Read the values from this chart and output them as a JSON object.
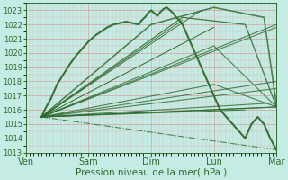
{
  "xlabel": "Pression niveau de la mer( hPa )",
  "ylim": [
    1013,
    1023.5
  ],
  "xlim": [
    0,
    4.0
  ],
  "yticks": [
    1013,
    1014,
    1015,
    1016,
    1017,
    1018,
    1019,
    1020,
    1021,
    1022,
    1023
  ],
  "xtick_labels": [
    "Ven",
    "Sam",
    "Dim",
    "Lun",
    "Mar"
  ],
  "xtick_positions": [
    0,
    1,
    2,
    3,
    4
  ],
  "bg_color": "#c5ece4",
  "grid_color_major": "#d4a0a0",
  "grid_color_minor": "#dbbaba",
  "line_color": "#2d6b2d",
  "fig_bg": "#c5ece4",
  "lines": [
    {
      "x": [
        0.25,
        4.0
      ],
      "y": [
        1015.5,
        1016.2
      ],
      "lw": 0.8,
      "style": "-"
    },
    {
      "x": [
        0.25,
        4.0
      ],
      "y": [
        1015.5,
        1016.5
      ],
      "lw": 0.8,
      "style": "-"
    },
    {
      "x": [
        0.25,
        4.0
      ],
      "y": [
        1015.5,
        1017.5
      ],
      "lw": 0.8,
      "style": "-"
    },
    {
      "x": [
        0.25,
        4.0
      ],
      "y": [
        1015.5,
        1018.0
      ],
      "lw": 0.8,
      "style": "-"
    },
    {
      "x": [
        0.25,
        4.0
      ],
      "y": [
        1015.5,
        1021.8
      ],
      "lw": 0.8,
      "style": "-"
    },
    {
      "x": [
        0.25,
        4.0
      ],
      "y": [
        1015.5,
        1022.0
      ],
      "lw": 0.8,
      "style": "-"
    },
    {
      "x": [
        0.25,
        4.0
      ],
      "y": [
        1015.5,
        1013.2
      ],
      "lw": 0.8,
      "style": "-."
    },
    {
      "x": [
        0.25,
        3.0,
        4.0
      ],
      "y": [
        1015.5,
        1017.8,
        1016.2
      ],
      "lw": 0.8,
      "style": "-"
    },
    {
      "x": [
        0.25,
        3.0,
        4.0
      ],
      "y": [
        1015.5,
        1020.5,
        1016.2
      ],
      "lw": 0.8,
      "style": "-"
    },
    {
      "x": [
        0.25,
        2.5,
        3.5,
        4.0
      ],
      "y": [
        1015.5,
        1022.5,
        1022.0,
        1016.2
      ],
      "lw": 1.0,
      "style": "-"
    },
    {
      "x": [
        0.25,
        2.0,
        3.0,
        3.8,
        4.0
      ],
      "y": [
        1015.5,
        1022.0,
        1023.2,
        1022.5,
        1016.3
      ],
      "lw": 1.2,
      "style": "-"
    }
  ],
  "main_x": [
    0.25,
    0.3,
    0.4,
    0.5,
    0.6,
    0.7,
    0.8,
    0.9,
    1.0,
    1.1,
    1.2,
    1.3,
    1.4,
    1.5,
    1.6,
    1.7,
    1.8,
    1.85,
    1.9,
    1.95,
    2.0,
    2.05,
    2.1,
    2.15,
    2.2,
    2.25,
    2.3,
    2.35,
    2.4,
    2.45,
    2.5,
    2.55,
    2.6,
    2.65,
    2.7,
    2.75,
    2.8,
    2.85,
    2.9,
    2.95,
    3.0,
    3.1,
    3.2,
    3.3,
    3.4,
    3.5,
    3.6,
    3.7,
    3.8,
    3.9,
    4.0
  ],
  "main_y": [
    1015.5,
    1016.0,
    1016.8,
    1017.8,
    1018.5,
    1019.2,
    1019.8,
    1020.3,
    1020.8,
    1021.2,
    1021.5,
    1021.8,
    1022.0,
    1022.1,
    1022.2,
    1022.1,
    1022.0,
    1022.3,
    1022.5,
    1022.8,
    1023.0,
    1022.8,
    1022.6,
    1022.9,
    1023.1,
    1023.2,
    1023.0,
    1022.8,
    1022.5,
    1022.3,
    1022.0,
    1021.5,
    1021.0,
    1020.5,
    1020.0,
    1019.5,
    1019.0,
    1018.5,
    1018.0,
    1017.5,
    1017.0,
    1016.0,
    1015.5,
    1015.0,
    1014.5,
    1014.0,
    1015.0,
    1015.5,
    1015.0,
    1014.0,
    1013.2
  ]
}
